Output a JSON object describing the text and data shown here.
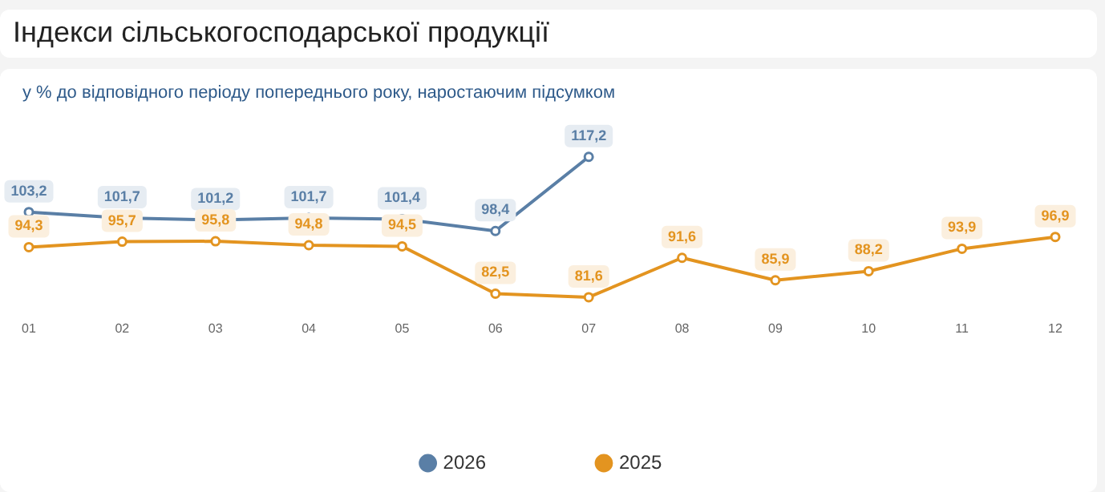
{
  "chart_data": {
    "type": "line",
    "title": "Індекси сільськогосподарської продукції",
    "subtitle": "у % до відповідного періоду попереднього року, наростаючим підсумком",
    "categories": [
      "01",
      "02",
      "03",
      "04",
      "05",
      "06",
      "07",
      "08",
      "09",
      "10",
      "11",
      "12"
    ],
    "series": [
      {
        "name": "2026",
        "color": "#5a7fa6",
        "values": [
          103.2,
          101.7,
          101.2,
          101.7,
          101.4,
          98.4,
          117.2,
          null,
          null,
          null,
          null,
          null
        ],
        "value_labels": [
          "103,2",
          "101,7",
          "101,2",
          "101,7",
          "101,4",
          "98,4",
          "117,2",
          null,
          null,
          null,
          null,
          null
        ]
      },
      {
        "name": "2025",
        "color": "#e39420",
        "values": [
          94.3,
          95.7,
          95.8,
          94.8,
          94.5,
          82.5,
          81.6,
          91.6,
          85.9,
          88.2,
          93.9,
          96.9
        ],
        "value_labels": [
          "94,3",
          "95,7",
          "95,8",
          "94,8",
          "94,5",
          "82,5",
          "81,6",
          "91,6",
          "85,9",
          "88,2",
          "93,9",
          "96,9"
        ]
      }
    ],
    "grid": false,
    "legend": "bottom",
    "marker": "circle",
    "line_style": "solid"
  }
}
